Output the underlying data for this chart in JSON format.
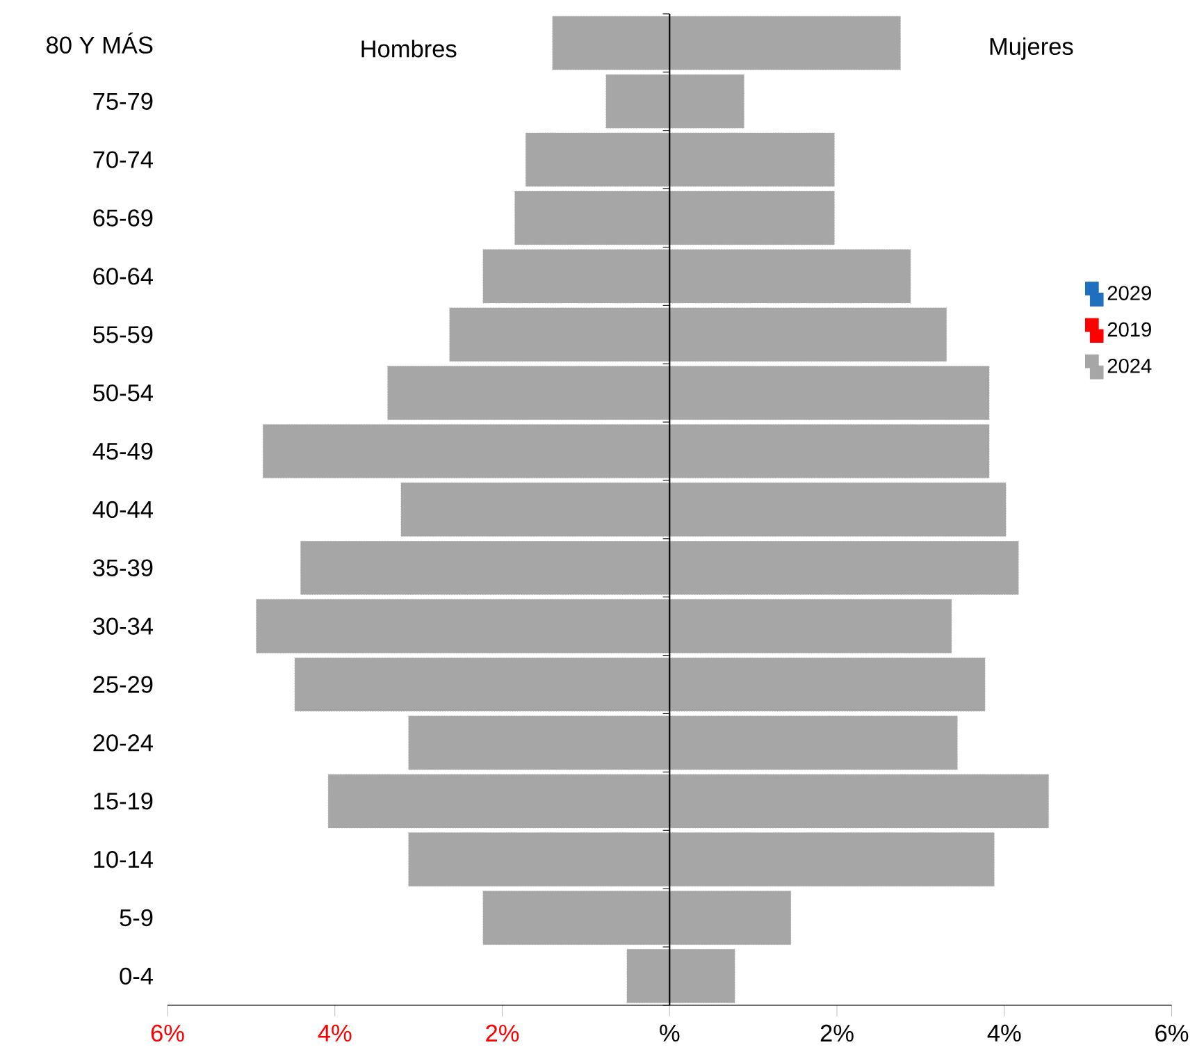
{
  "chart_data": {
    "type": "bar",
    "orientation": "horizontal",
    "categories": [
      "80 Y MÁS",
      "75-79",
      "70-74",
      "65-69",
      "60-64",
      "55-59",
      "50-54",
      "45-49",
      "40-44",
      "35-39",
      "30-34",
      "25-29",
      "20-24",
      "15-19",
      "10-14",
      "5-9",
      "0-4"
    ],
    "series": [
      {
        "name": "2029",
        "color": "#1f6fbf",
        "values": [
          null,
          null,
          null,
          null,
          null,
          null,
          null,
          null,
          null,
          null,
          null,
          null,
          null,
          null,
          null,
          null,
          null
        ]
      },
      {
        "name": "2019",
        "color": "#ff0000",
        "values": [
          null,
          null,
          null,
          null,
          null,
          null,
          null,
          null,
          null,
          null,
          null,
          null,
          null,
          null,
          null,
          null,
          null
        ]
      },
      {
        "name": "2024",
        "color": "#a6a6a6",
        "values": [
          -1.4,
          -0.76,
          -1.72,
          -1.85,
          -2.23,
          -2.63,
          -3.37,
          -4.86,
          -3.21,
          -4.41,
          -4.94,
          -4.48,
          -3.12,
          -4.08,
          -3.12,
          -2.23,
          -0.51
        ]
      },
      {
        "color": "#a6a6a6",
        "values": [
          2.76,
          0.89,
          1.97,
          1.97,
          2.88,
          3.31,
          3.82,
          3.82,
          4.02,
          4.17,
          3.37,
          3.77,
          3.44,
          4.53,
          3.88,
          1.45,
          0.78
        ]
      }
    ],
    "xlim": [
      -6,
      6
    ],
    "xticks": [
      {
        "value": -6,
        "label": "6%"
      },
      {
        "value": -4,
        "label": "4%"
      },
      {
        "value": -2,
        "label": "2%"
      },
      {
        "value": 0,
        "label": "%"
      },
      {
        "value": 2,
        "label": "2%"
      },
      {
        "value": 4,
        "label": "4%"
      },
      {
        "value": 6,
        "label": "6%"
      }
    ],
    "annotations": [
      "Hombres",
      "Mujeres"
    ],
    "stacked": true,
    "ref_lines": [
      {
        "axis": "x",
        "value": 0,
        "color": "#000000"
      }
    ],
    "legend": "right",
    "grid": false
  }
}
